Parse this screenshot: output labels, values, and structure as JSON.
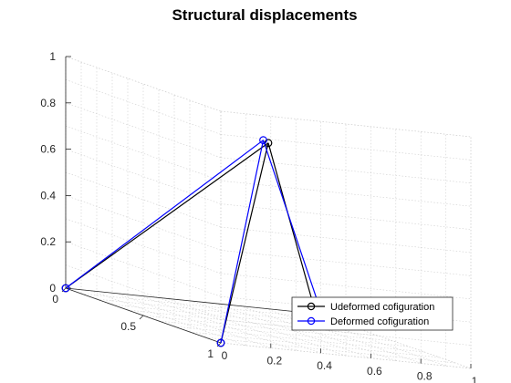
{
  "chart_data": {
    "type": "line3d",
    "title": "Structural displacements",
    "xlabel": "",
    "ylabel": "",
    "zlabel": "",
    "xlim": [
      0,
      1
    ],
    "ylim": [
      0,
      1
    ],
    "zlim": [
      0,
      1
    ],
    "x_ticks": [
      "0",
      "0.2",
      "0.4",
      "0.6",
      "0.8",
      "1"
    ],
    "y_ticks": [
      "0",
      "0.5",
      "1"
    ],
    "z_ticks": [
      "0",
      "0.2",
      "0.4",
      "0.6",
      "0.8",
      "1"
    ],
    "grid": true,
    "legend_position": "bottom-right",
    "series": [
      {
        "name": "Udeformed cofiguration",
        "color": "#000000",
        "marker": "circle",
        "nodes": [
          [
            0,
            0,
            0
          ],
          [
            1,
            0,
            0
          ],
          [
            0,
            1,
            0
          ],
          [
            0.5,
            0.5,
            0.8
          ]
        ],
        "members": [
          [
            0,
            3
          ],
          [
            1,
            3
          ],
          [
            2,
            3
          ]
        ]
      },
      {
        "name": "Deformed cofiguration",
        "color": "#0000ff",
        "marker": "circle",
        "nodes": [
          [
            0,
            0,
            0
          ],
          [
            1.01,
            0.02,
            0.01
          ],
          [
            0,
            1,
            0
          ],
          [
            0.48,
            0.5,
            0.81
          ]
        ],
        "members": [
          [
            0,
            3
          ],
          [
            1,
            3
          ],
          [
            2,
            3
          ]
        ]
      }
    ]
  }
}
